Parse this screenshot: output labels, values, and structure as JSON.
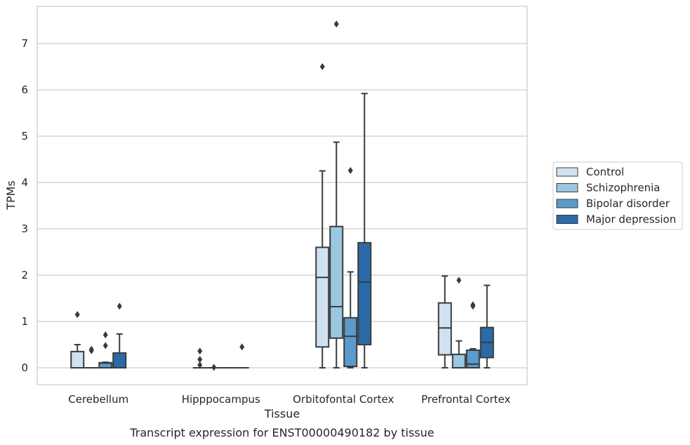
{
  "chart_data": {
    "type": "box",
    "title": "",
    "caption": "Transcript expression for ENST00000490182 by tissue",
    "xlabel": "Tissue",
    "ylabel": "TPMs",
    "ylim": [
      -0.35,
      7.8
    ],
    "yticks": [
      0,
      1,
      2,
      3,
      4,
      5,
      6,
      7
    ],
    "grid": "horizontal",
    "legend_position": "right",
    "categories": [
      "Cerebellum",
      "Hipppocampus",
      "Orbitofontal Cortex",
      "Prefrontal Cortex"
    ],
    "series": [
      {
        "name": "Control",
        "color": "#d0e1f2",
        "boxes": [
          {
            "whislo": 0,
            "q1": 0,
            "med": 0,
            "q3": 0.35,
            "whishi": 0.5,
            "fliers": [
              1.15
            ]
          },
          {
            "whislo": 0,
            "q1": 0,
            "med": 0,
            "q3": 0,
            "whishi": 0,
            "fliers": [
              0.36,
              0.18,
              0.06
            ]
          },
          {
            "whislo": 0,
            "q1": 0.45,
            "med": 1.95,
            "q3": 2.6,
            "whishi": 4.25,
            "fliers": [
              6.5
            ]
          },
          {
            "whislo": 0,
            "q1": 0.28,
            "med": 0.86,
            "q3": 1.4,
            "whishi": 1.98,
            "fliers": []
          }
        ]
      },
      {
        "name": "Schizophrenia",
        "color": "#9ac8e0",
        "boxes": [
          {
            "whislo": 0,
            "q1": 0,
            "med": 0,
            "q3": 0,
            "whishi": 0,
            "fliers": [
              0.4,
              0.37
            ]
          },
          {
            "whislo": 0,
            "q1": 0,
            "med": 0,
            "q3": 0,
            "whishi": 0,
            "fliers": [
              0.01
            ]
          },
          {
            "whislo": 0,
            "q1": 0.64,
            "med": 1.32,
            "q3": 3.05,
            "whishi": 4.87,
            "fliers": [
              7.42
            ]
          },
          {
            "whislo": 0,
            "q1": 0,
            "med": 0,
            "q3": 0.29,
            "whishi": 0.58,
            "fliers": [
              1.89
            ]
          }
        ]
      },
      {
        "name": "Bipolar disorder",
        "color": "#5b9bcb",
        "boxes": [
          {
            "whislo": 0,
            "q1": 0,
            "med": 0.1,
            "q3": 0.11,
            "whishi": 0.12,
            "fliers": [
              0.71,
              0.48
            ]
          },
          {
            "whislo": 0,
            "q1": 0,
            "med": 0,
            "q3": 0,
            "whishi": 0,
            "fliers": []
          },
          {
            "whislo": 0,
            "q1": 0.03,
            "med": 0.68,
            "q3": 1.08,
            "whishi": 2.07,
            "fliers": [
              4.26
            ]
          },
          {
            "whislo": 0,
            "q1": 0,
            "med": 0.08,
            "q3": 0.38,
            "whishi": 0.41,
            "fliers": [
              1.36,
              1.33
            ]
          }
        ]
      },
      {
        "name": "Major depression",
        "color": "#2b6aa8",
        "boxes": [
          {
            "whislo": 0,
            "q1": 0,
            "med": 0,
            "q3": 0.32,
            "whishi": 0.73,
            "fliers": [
              1.33
            ]
          },
          {
            "whislo": 0,
            "q1": 0,
            "med": 0,
            "q3": 0,
            "whishi": 0,
            "fliers": [
              0.45
            ]
          },
          {
            "whislo": 0,
            "q1": 0.5,
            "med": 1.85,
            "q3": 2.7,
            "whishi": 5.92,
            "fliers": []
          },
          {
            "whislo": 0,
            "q1": 0.22,
            "med": 0.55,
            "q3": 0.87,
            "whishi": 1.78,
            "fliers": []
          }
        ]
      }
    ]
  }
}
